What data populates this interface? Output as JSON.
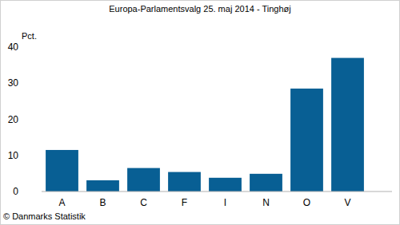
{
  "chart_data": {
    "type": "bar",
    "title": "Europa-Parlamentsvalg 25. maj 2014 - Tinghøj",
    "y_label": "Pct.",
    "source": "© Danmarks Statistik",
    "categories": [
      "A",
      "B",
      "C",
      "F",
      "I",
      "N",
      "O",
      "V"
    ],
    "values": [
      11.5,
      3.1,
      6.5,
      5.4,
      3.8,
      4.9,
      28.5,
      37.0
    ],
    "color": "#085f94",
    "ylim": [
      0,
      40
    ],
    "yticks": [
      0,
      10,
      20,
      30,
      40
    ],
    "grid": false
  }
}
